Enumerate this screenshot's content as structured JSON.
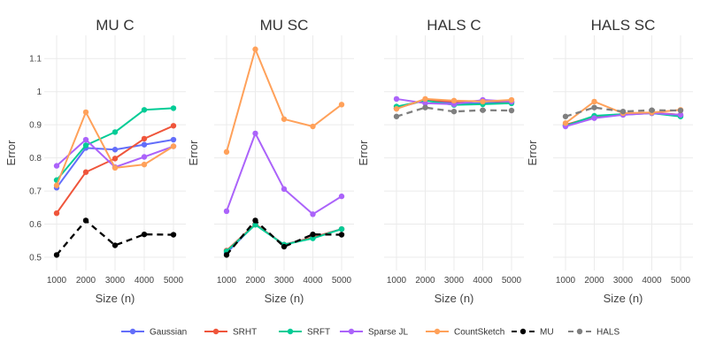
{
  "chart_data": {
    "type": "line",
    "panels": [
      {
        "title": "MU C",
        "xlabel": "Size (n)",
        "ylabel": "Error",
        "x": [
          1000,
          2000,
          3000,
          4000,
          5000
        ],
        "series": [
          {
            "name": "Gaussian",
            "values": [
              0.71,
              0.83,
              0.825,
              0.84,
              0.855
            ]
          },
          {
            "name": "SRHT",
            "values": [
              0.633,
              0.757,
              0.798,
              0.858,
              0.897
            ]
          },
          {
            "name": "SRFT",
            "values": [
              0.733,
              0.838,
              0.878,
              0.945,
              0.95
            ]
          },
          {
            "name": "Sparse JL",
            "values": [
              0.776,
              0.855,
              0.772,
              0.803,
              0.835
            ]
          },
          {
            "name": "CountSketch",
            "values": [
              0.717,
              0.938,
              0.77,
              0.78,
              0.835
            ]
          },
          {
            "name": "MU",
            "values": [
              0.507,
              0.611,
              0.536,
              0.569,
              0.568
            ]
          }
        ]
      },
      {
        "title": "MU SC",
        "xlabel": "Size (n)",
        "ylabel": "Error",
        "x": [
          1000,
          2000,
          3000,
          4000,
          5000
        ],
        "series": [
          {
            "name": "Gaussian",
            "values": [
              0.513,
              0.6,
              0.538,
              0.56,
              0.585
            ]
          },
          {
            "name": "SRHT",
            "values": [
              0.52,
              0.6,
              0.538,
              0.56,
              0.585
            ]
          },
          {
            "name": "SRFT",
            "values": [
              0.518,
              0.598,
              0.538,
              0.557,
              0.585
            ]
          },
          {
            "name": "Sparse JL",
            "values": [
              0.639,
              0.874,
              0.706,
              0.63,
              0.684
            ]
          },
          {
            "name": "CountSketch",
            "values": [
              0.818,
              1.128,
              0.917,
              0.895,
              0.961
            ]
          },
          {
            "name": "MU",
            "values": [
              0.507,
              0.611,
              0.532,
              0.569,
              0.568
            ]
          }
        ]
      },
      {
        "title": "HALS C",
        "xlabel": "Size (n)",
        "ylabel": "Error",
        "x": [
          1000,
          2000,
          3000,
          4000,
          5000
        ],
        "series": [
          {
            "name": "Gaussian",
            "values": [
              0.95,
              0.975,
              0.965,
              0.965,
              0.968
            ]
          },
          {
            "name": "SRHT",
            "values": [
              0.95,
              0.975,
              0.97,
              0.972,
              0.97
            ]
          },
          {
            "name": "SRFT",
            "values": [
              0.955,
              0.973,
              0.96,
              0.962,
              0.965
            ]
          },
          {
            "name": "Sparse JL",
            "values": [
              0.978,
              0.965,
              0.962,
              0.975,
              0.97
            ]
          },
          {
            "name": "CountSketch",
            "values": [
              0.948,
              0.978,
              0.973,
              0.97,
              0.975
            ]
          },
          {
            "name": "HALS",
            "values": [
              0.925,
              0.952,
              0.94,
              0.944,
              0.943
            ]
          }
        ]
      },
      {
        "title": "HALS SC",
        "xlabel": "Size (n)",
        "ylabel": "Error",
        "x": [
          1000,
          2000,
          3000,
          4000,
          5000
        ],
        "series": [
          {
            "name": "Gaussian",
            "values": [
              0.897,
              0.923,
              0.93,
              0.935,
              0.927
            ]
          },
          {
            "name": "SRHT",
            "values": [
              0.9,
              0.925,
              0.932,
              0.937,
              0.93
            ]
          },
          {
            "name": "SRFT",
            "values": [
              0.897,
              0.927,
              0.932,
              0.935,
              0.925
            ]
          },
          {
            "name": "Sparse JL",
            "values": [
              0.895,
              0.92,
              0.93,
              0.935,
              0.93
            ]
          },
          {
            "name": "CountSketch",
            "values": [
              0.905,
              0.97,
              0.935,
              0.937,
              0.945
            ]
          },
          {
            "name": "HALS",
            "values": [
              0.925,
              0.952,
              0.94,
              0.944,
              0.943
            ]
          }
        ]
      }
    ],
    "y_ticks": [
      "0.5",
      "0.6",
      "0.7",
      "0.8",
      "0.9",
      "1",
      "1.1"
    ],
    "x_ticks": [
      "1000",
      "2000",
      "3000",
      "4000",
      "5000"
    ],
    "ylim": [
      0.46,
      1.17
    ],
    "shared_y": true,
    "grid": true,
    "legend_position": "bottom",
    "legend": [
      {
        "name": "Gaussian",
        "color": "#636efa",
        "dash": false
      },
      {
        "name": "SRHT",
        "color": "#ef553b",
        "dash": false
      },
      {
        "name": "SRFT",
        "color": "#00cc96",
        "dash": false
      },
      {
        "name": "Sparse JL",
        "color": "#ab63fa",
        "dash": false
      },
      {
        "name": "CountSketch",
        "color": "#ffa15a",
        "dash": false
      },
      {
        "name": "MU",
        "color": "#000000",
        "dash": true
      },
      {
        "name": "HALS",
        "color": "#7f7f7f",
        "dash": true
      }
    ]
  }
}
